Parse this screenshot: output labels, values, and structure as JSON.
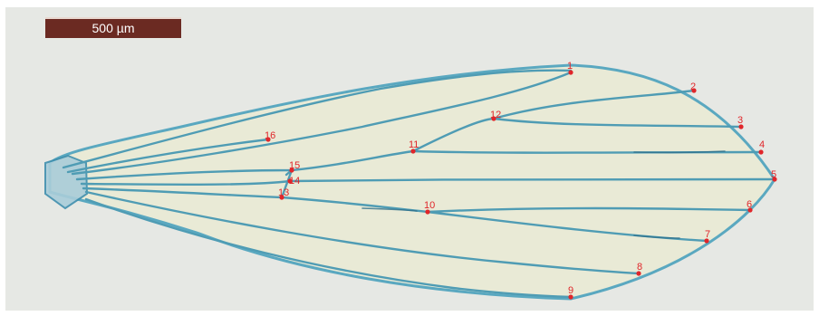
{
  "scale_bar": {
    "label": "500 µm"
  },
  "landmarks": [
    {
      "label": "1"
    },
    {
      "label": "2"
    },
    {
      "label": "3"
    },
    {
      "label": "4"
    },
    {
      "label": "5"
    },
    {
      "label": "6"
    },
    {
      "label": "7"
    },
    {
      "label": "8"
    },
    {
      "label": "9"
    },
    {
      "label": "10"
    },
    {
      "label": "11"
    },
    {
      "label": "12"
    },
    {
      "label": "13"
    },
    {
      "label": "14"
    },
    {
      "label": "15"
    },
    {
      "label": "16"
    }
  ],
  "colors": {
    "background": "#e6e8e4",
    "wing_membrane": "#e9ead6",
    "vein": "#4f9cb4",
    "vein_dark": "#2e6f8a",
    "landmark": "#e0262a",
    "scale_bar": "#6b2a22"
  }
}
